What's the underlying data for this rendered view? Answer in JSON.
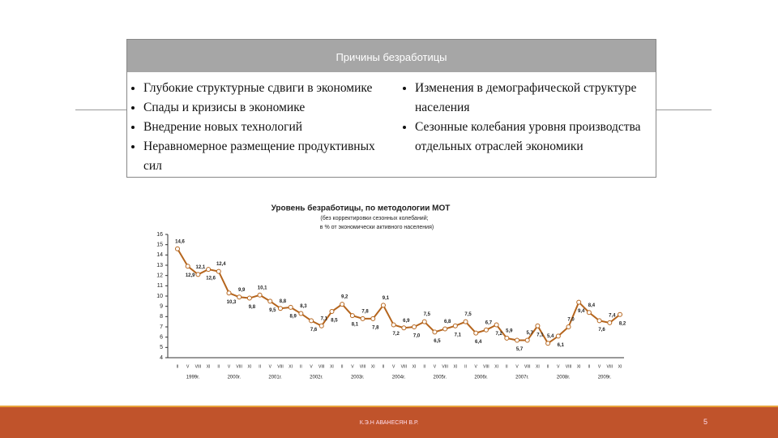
{
  "slide": {
    "box_title": "Причины безработицы",
    "left_items": [
      "Глубокие структурные сдвиги в экономике",
      "Спады и кризисы в экономике",
      "Внедрение новых технологий",
      "Неравномерное размещение продуктивных сил"
    ],
    "right_items": [
      "Изменения в демографической структуре населения",
      "Сезонные колебания уровня производства отдельных отраслей экономики"
    ],
    "footer": "К.Э.Н АВАНЕСЯН В.Р.",
    "page_number": "5"
  },
  "chart_data": {
    "type": "line",
    "title": "Уровень безработицы, по методологии МОТ",
    "subtitle": [
      "(без корректировки сезонных колебаний;",
      "в % от экономически активного населения)"
    ],
    "categories": [
      "II",
      "V",
      "VIII",
      "XI",
      "II",
      "V",
      "VIII",
      "XI",
      "II",
      "V",
      "VIII",
      "XI",
      "II",
      "V",
      "VIII",
      "XI",
      "II",
      "V",
      "VIII",
      "XI",
      "II",
      "V",
      "VIII",
      "XI",
      "II",
      "V",
      "VIII",
      "XI",
      "II",
      "V",
      "VIII",
      "XI",
      "II",
      "V",
      "VIII",
      "XI",
      "II",
      "V",
      "VIII",
      "XI",
      "II",
      "V",
      "VIII",
      "XI"
    ],
    "year_labels": [
      "1999г.",
      "2000г.",
      "2001г.",
      "2002г.",
      "2003г.",
      "2004г.",
      "2005г.",
      "2006г.",
      "2007г.",
      "2008г.",
      "2009г."
    ],
    "values": [
      14.6,
      12.9,
      12.1,
      12.6,
      12.4,
      10.3,
      9.9,
      9.8,
      10.1,
      9.5,
      8.8,
      8.9,
      8.3,
      7.6,
      7.1,
      8.5,
      9.2,
      8.1,
      7.8,
      7.8,
      9.1,
      7.2,
      6.9,
      7.0,
      7.5,
      6.5,
      6.8,
      7.1,
      7.5,
      6.4,
      6.7,
      7.2,
      5.9,
      5.7,
      5.7,
      7.1,
      5.4,
      6.1,
      7.0,
      9.4,
      8.4,
      7.6,
      7.4,
      8.2
    ],
    "value_labels": [
      "14,6",
      "12,9",
      "12,1",
      "12,6",
      "12,4",
      "10,3",
      "9,9",
      "9,8",
      "10,1",
      "9,5",
      "8,8",
      "8,9",
      "8,3",
      "7,6",
      "7,1",
      "8,5",
      "9,2",
      "8,1",
      "7,8",
      "7,8",
      "9,1",
      "7,2",
      "6,9",
      "7,0",
      "7,5",
      "6,5",
      "6,8",
      "7,1",
      "7,5",
      "6,4",
      "6,7",
      "7,2",
      "5,9",
      "5,7",
      "5,7",
      "7,1",
      "5,4",
      "6,1",
      "7,0",
      "9,4",
      "8,4",
      "7,6",
      "7,4",
      "8,2"
    ],
    "color": "#b5651d",
    "ylim": [
      4,
      16
    ],
    "yticks": [
      4,
      5,
      6,
      7,
      8,
      9,
      10,
      11,
      12,
      13,
      14,
      15,
      16
    ],
    "grid": false
  }
}
